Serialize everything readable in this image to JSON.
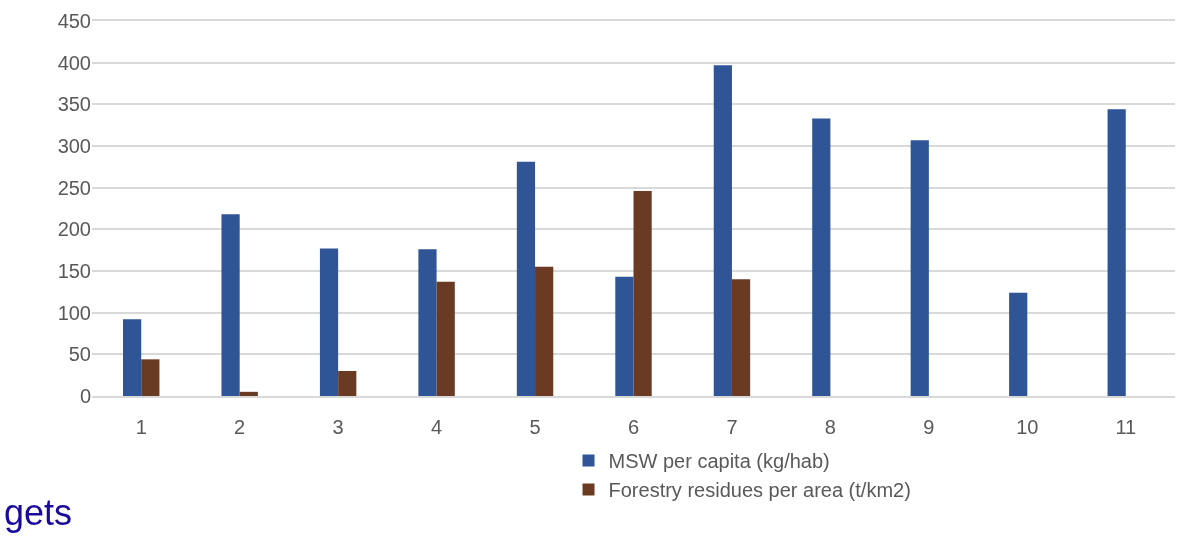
{
  "chart_data": {
    "type": "bar",
    "categories": [
      "1",
      "2",
      "3",
      "4",
      "5",
      "6",
      "7",
      "8",
      "9",
      "10",
      "11"
    ],
    "series": [
      {
        "name": "MSW per capita (kg/hab)",
        "color": "#2f5597",
        "values": [
          92,
          218,
          177,
          176,
          281,
          143,
          397,
          333,
          307,
          124,
          344
        ]
      },
      {
        "name": "Forestry residues per area (t/km2)",
        "color": "#6b3a23",
        "values": [
          44,
          5,
          30,
          137,
          155,
          246,
          140,
          null,
          null,
          null,
          null
        ]
      }
    ],
    "ylim": [
      0,
      450
    ],
    "yticks": [
      0,
      50,
      100,
      150,
      200,
      250,
      300,
      350,
      400,
      450
    ],
    "grid": "y",
    "legend": "bottom",
    "annotations": [
      "gets"
    ]
  }
}
